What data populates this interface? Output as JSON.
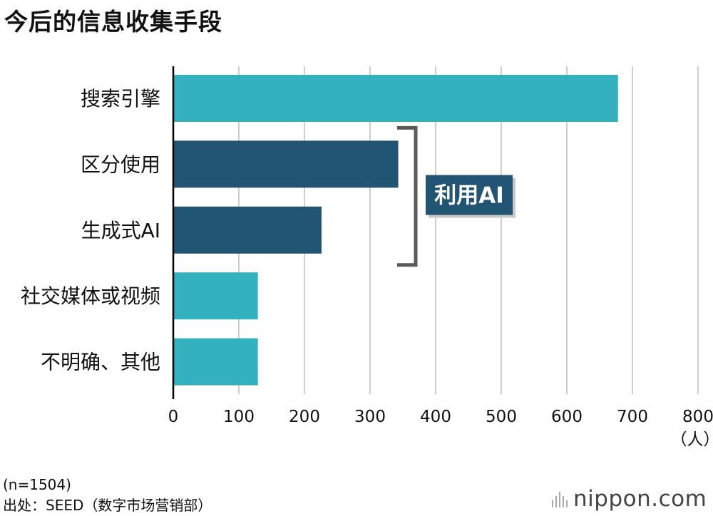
{
  "chart_data": {
    "type": "bar",
    "orientation": "horizontal",
    "title": "今后的信息收集手段",
    "categories": [
      "搜索引擎",
      "区分使用",
      "生成式AI",
      "社交媒体或视频",
      "不明确、其他"
    ],
    "values": [
      678,
      343,
      226,
      129,
      129
    ],
    "unit": "（人）",
    "xlim": [
      0,
      800
    ],
    "xticks": [
      0,
      100,
      200,
      300,
      400,
      500,
      600,
      700,
      800
    ],
    "grid": true,
    "annotation": {
      "label": "利用AI",
      "groups": [
        "区分使用",
        "生成式AI"
      ]
    },
    "colors": {
      "default": "#33b1bf",
      "ai_group": "#225473",
      "grid": "#cfcfcf",
      "axis": "#000000",
      "bracket": "#5a5a5a",
      "callout_bg": "#225473",
      "callout_text": "#ffffff"
    }
  },
  "footer": {
    "sample_size": "(n=1504)",
    "source": "出处：SEED（数字市场营销部）"
  },
  "brand": {
    "logo_text": "nippon.com"
  }
}
